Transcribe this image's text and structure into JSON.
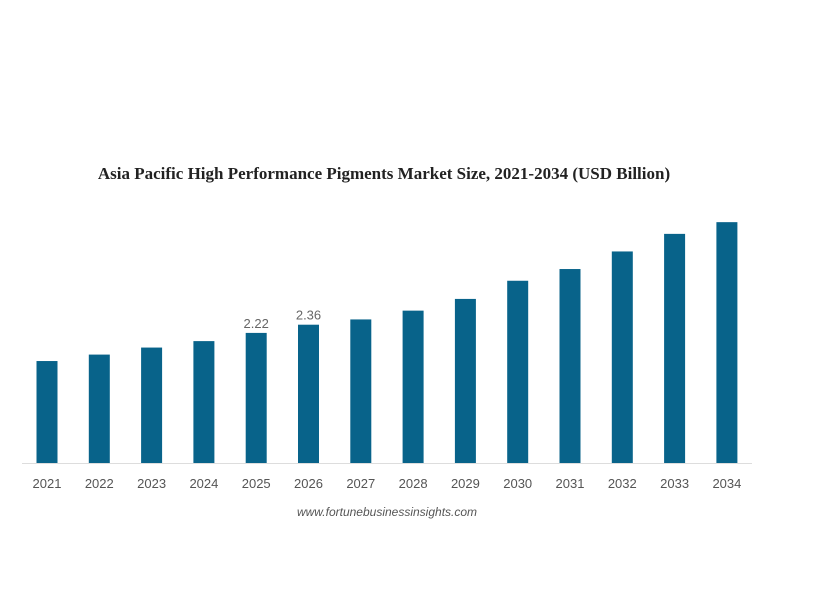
{
  "chart_data": {
    "type": "bar",
    "title": "Asia Pacific High Performance Pigments Market Size, 2021-2034 (USD Billion)",
    "xlabel": "",
    "ylabel": "",
    "categories": [
      "2021",
      "2022",
      "2023",
      "2024",
      "2025",
      "2026",
      "2027",
      "2028",
      "2029",
      "2030",
      "2031",
      "2032",
      "2033",
      "2034"
    ],
    "values": [
      1.74,
      1.85,
      1.97,
      2.08,
      2.22,
      2.36,
      2.45,
      2.6,
      2.8,
      3.11,
      3.31,
      3.61,
      3.91,
      4.11
    ],
    "data_labels": {
      "2025": "2.22",
      "2026": "2.36"
    },
    "ylim": [
      0,
      4.2
    ],
    "grid": false,
    "bar_color": "#08638a",
    "source": "www.fortunebusinessinsights.com"
  }
}
